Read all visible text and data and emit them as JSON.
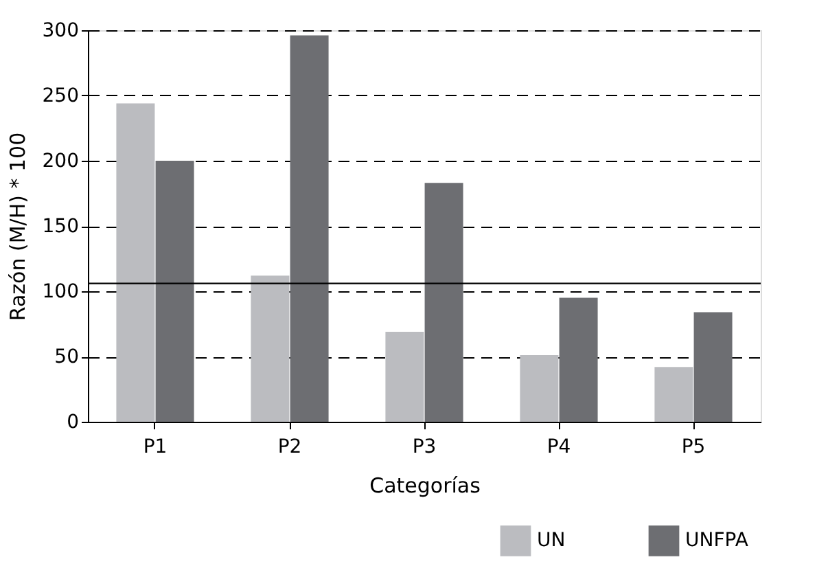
{
  "chart_data": {
    "type": "bar",
    "xlabel": "Categorías",
    "ylabel": "Razón (M/H) * 100",
    "categories": [
      "P1",
      "P2",
      "P3",
      "P4",
      "P5"
    ],
    "series": [
      {
        "name": "UN",
        "color": "#bbbcc0",
        "values": [
          244,
          112,
          69,
          51,
          42
        ]
      },
      {
        "name": "UNFPA",
        "color": "#6d6e72",
        "values": [
          200,
          296,
          183,
          95,
          84
        ]
      }
    ],
    "ylim": [
      0,
      300
    ],
    "yticks": [
      0,
      50,
      100,
      150,
      200,
      250,
      300
    ],
    "grid": "y",
    "legend": "bottom right",
    "ref_lines": [
      {
        "axis": "y",
        "value": 106,
        "color": "#000000",
        "line_style": "solid"
      }
    ]
  }
}
